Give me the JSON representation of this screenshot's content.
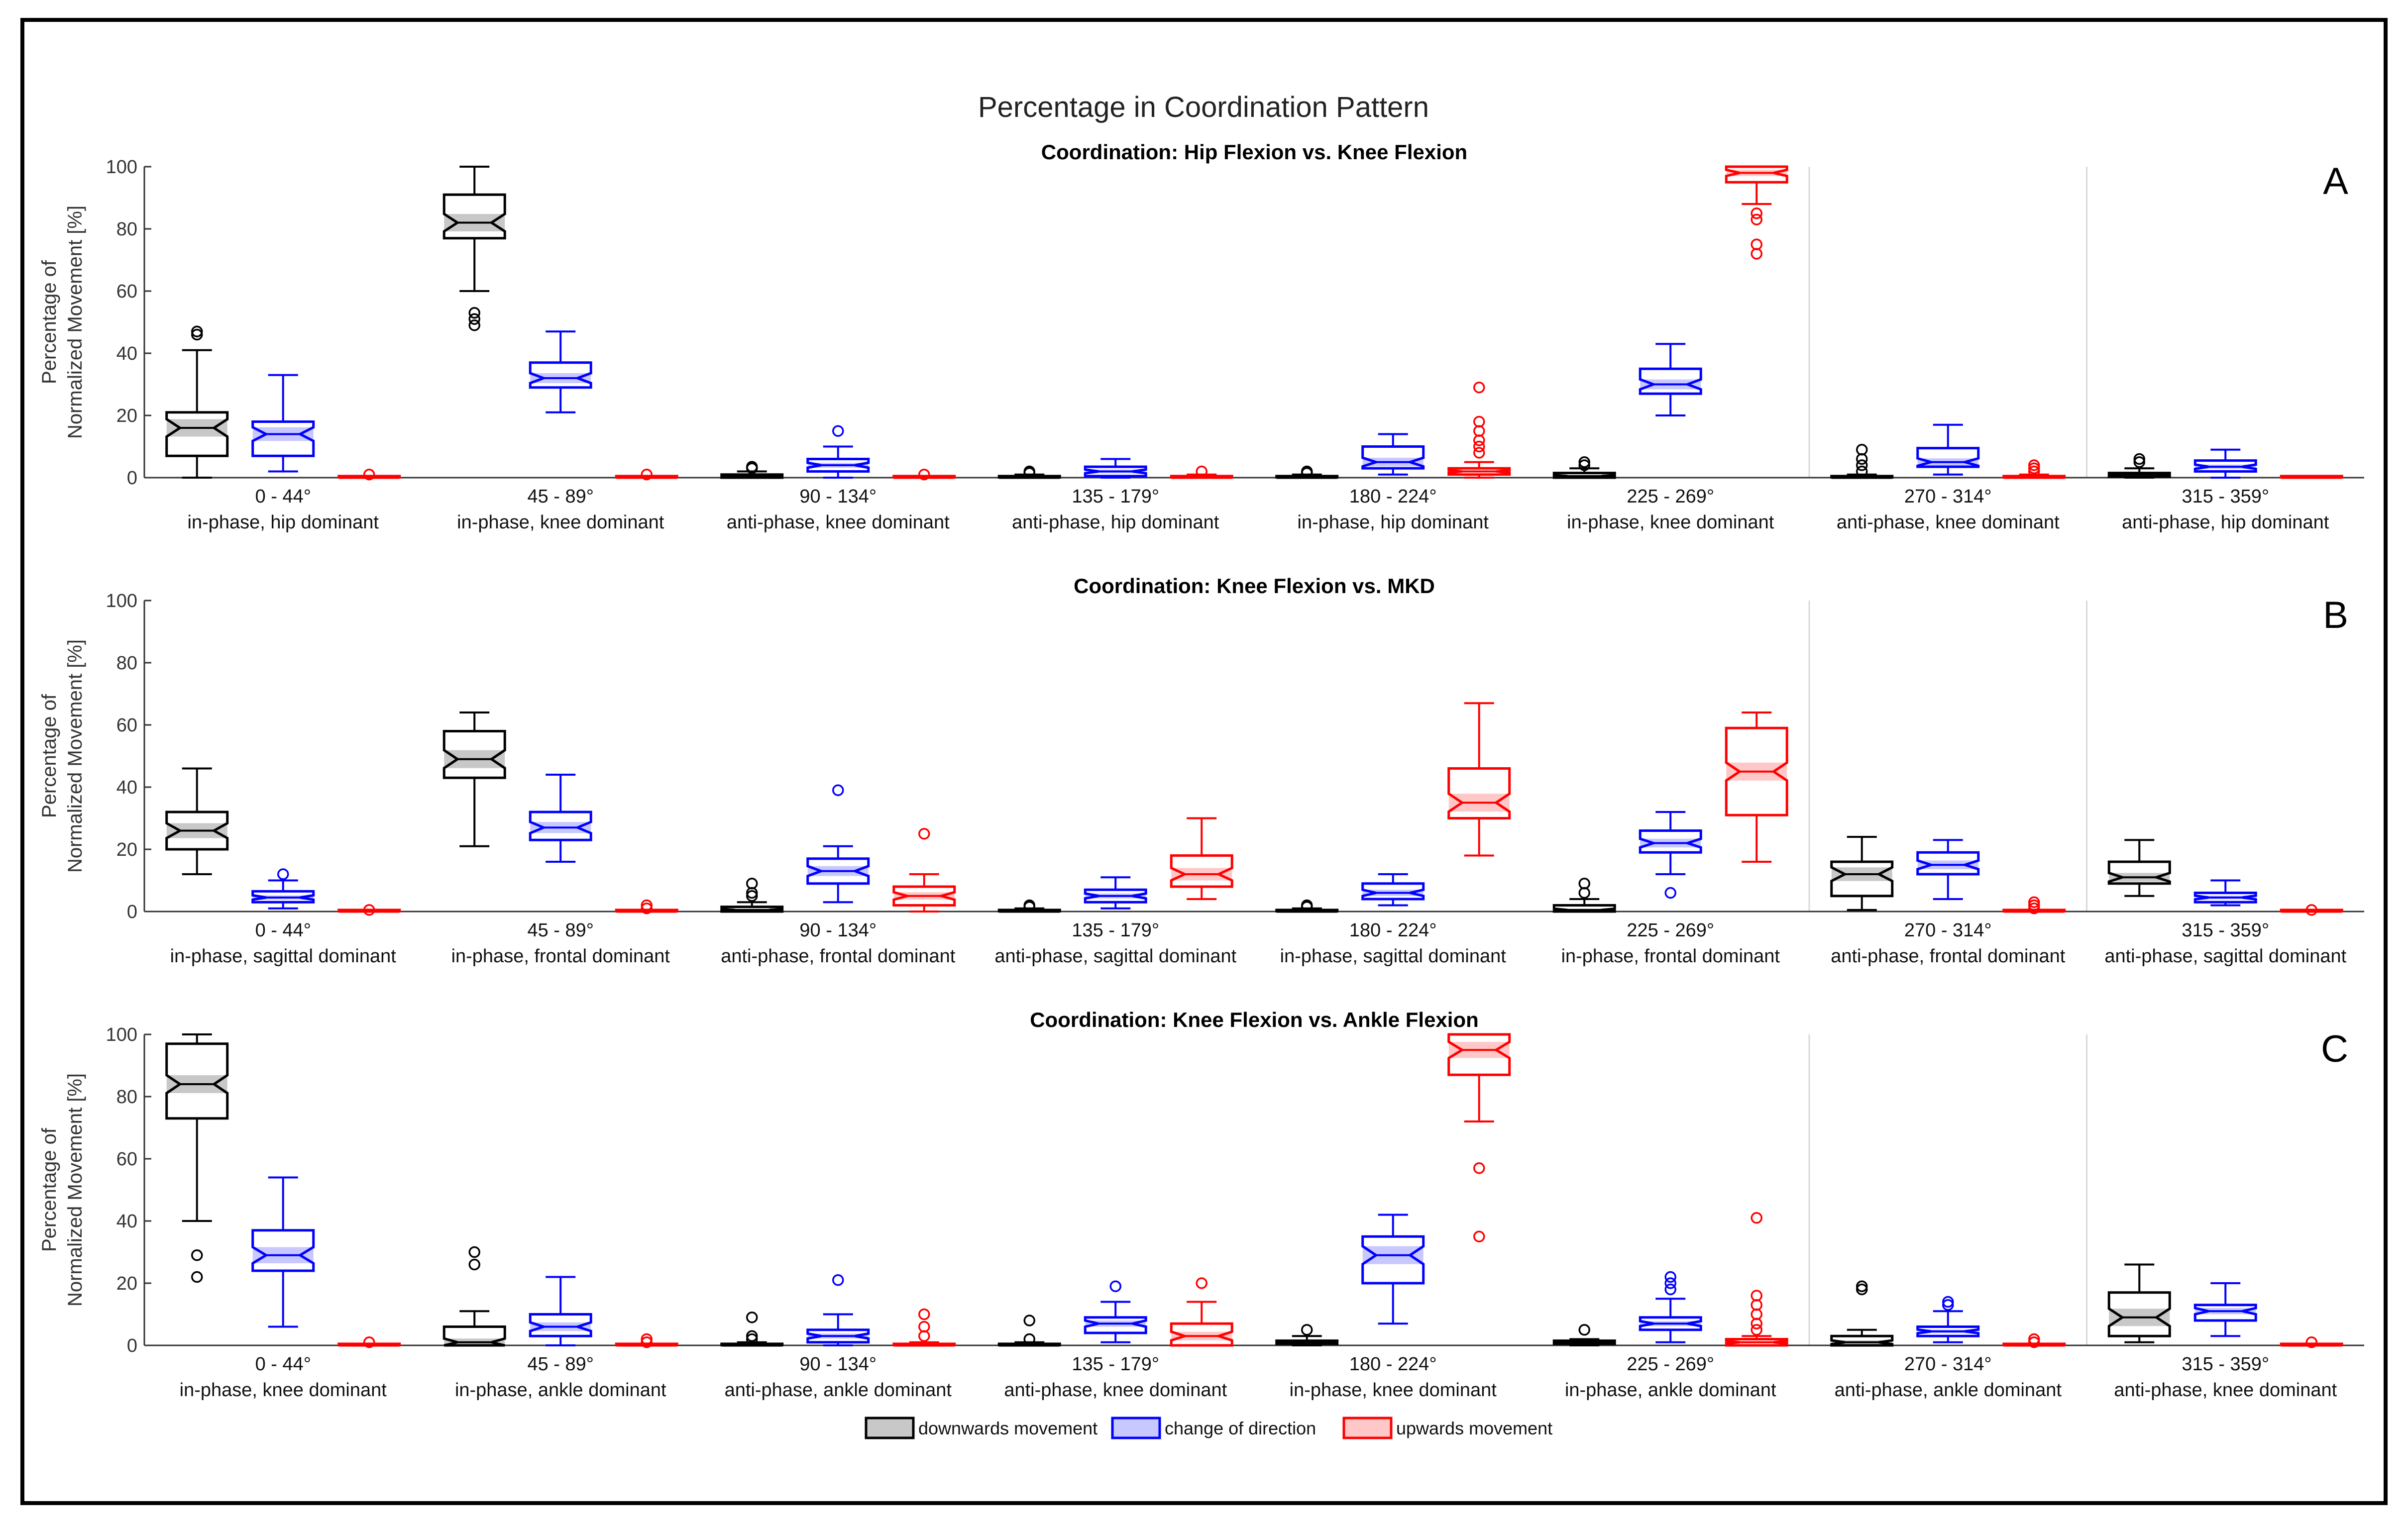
{
  "figure": {
    "title": "Percentage in Coordination Pattern",
    "ylabel_line1": "Percentage of",
    "ylabel_line2": "Normalized Movement [%]",
    "y_ticks": [
      "0",
      "20",
      "40",
      "60",
      "80",
      "100"
    ],
    "bins": [
      "0 - 44°",
      "45 - 89°",
      "90 - 134°",
      "135 - 179°",
      "180 - 224°",
      "225 - 269°",
      "270 - 314°",
      "315 - 359°"
    ],
    "legend": [
      {
        "label": "downwards movement",
        "color": "#000000",
        "fill": "#c8c8c8"
      },
      {
        "label": "change of direction",
        "color": "#0000ff",
        "fill": "#c8c8ff"
      },
      {
        "label": "upwards movement",
        "color": "#ff0000",
        "fill": "#ffc8c8"
      }
    ]
  },
  "chart_data": [
    {
      "type": "box",
      "panel_letter": "A",
      "title": "Coordination: Hip Flexion vs. Knee Flexion",
      "ylim": [
        0,
        100
      ],
      "categories": [
        "0 - 44°",
        "45 - 89°",
        "90 - 134°",
        "135 - 179°",
        "180 - 224°",
        "225 - 269°",
        "270 - 314°",
        "315 - 359°"
      ],
      "category_descriptions": [
        "in-phase, hip dominant",
        "in-phase, knee dominant",
        "anti-phase, knee dominant",
        "anti-phase, hip dominant",
        "in-phase, hip dominant",
        "in-phase, knee dominant",
        "anti-phase, knee dominant",
        "anti-phase, hip dominant"
      ],
      "series": [
        {
          "name": "downwards movement",
          "boxes": [
            {
              "min": 0,
              "q1": 7,
              "median": 16,
              "q3": 21,
              "max": 41,
              "outliers": [
                46,
                47
              ]
            },
            {
              "min": 60,
              "q1": 77,
              "median": 82,
              "q3": 91,
              "max": 100,
              "outliers": [
                49,
                51,
                53
              ]
            },
            {
              "min": 0,
              "q1": 0,
              "median": 0.5,
              "q3": 1,
              "max": 2,
              "outliers": [
                3,
                3.5
              ]
            },
            {
              "min": 0,
              "q1": 0,
              "median": 0,
              "q3": 0.5,
              "max": 1,
              "outliers": [
                1.5,
                2
              ]
            },
            {
              "min": 0,
              "q1": 0,
              "median": 0,
              "q3": 0.5,
              "max": 1,
              "outliers": [
                1.5,
                2
              ]
            },
            {
              "min": 0,
              "q1": 0,
              "median": 0.5,
              "q3": 1.5,
              "max": 3,
              "outliers": [
                4,
                5
              ]
            },
            {
              "min": 0,
              "q1": 0,
              "median": 0,
              "q3": 0.5,
              "max": 1,
              "outliers": [
                2,
                4,
                6,
                9
              ]
            },
            {
              "min": 0,
              "q1": 0.3,
              "median": 1,
              "q3": 1.5,
              "max": 3,
              "outliers": [
                5,
                6
              ]
            }
          ]
        },
        {
          "name": "change of direction",
          "boxes": [
            {
              "min": 2,
              "q1": 7,
              "median": 14,
              "q3": 18,
              "max": 33,
              "outliers": []
            },
            {
              "min": 21,
              "q1": 29,
              "median": 32,
              "q3": 37,
              "max": 47,
              "outliers": []
            },
            {
              "min": 0,
              "q1": 2,
              "median": 4,
              "q3": 6,
              "max": 10,
              "outliers": [
                15
              ]
            },
            {
              "min": 0,
              "q1": 0.5,
              "median": 2,
              "q3": 3.5,
              "max": 6,
              "outliers": []
            },
            {
              "min": 1,
              "q1": 3,
              "median": 5,
              "q3": 10,
              "max": 14,
              "outliers": []
            },
            {
              "min": 20,
              "q1": 27,
              "median": 30,
              "q3": 35,
              "max": 43,
              "outliers": []
            },
            {
              "min": 1,
              "q1": 3.5,
              "median": 5,
              "q3": 9.5,
              "max": 17,
              "outliers": []
            },
            {
              "min": 0,
              "q1": 2,
              "median": 3.5,
              "q3": 5.5,
              "max": 9,
              "outliers": []
            }
          ]
        },
        {
          "name": "upwards movement",
          "boxes": [
            {
              "min": 0,
              "q1": 0,
              "median": 0,
              "q3": 0.5,
              "max": 0.5,
              "outliers": [
                1
              ]
            },
            {
              "min": 0,
              "q1": 0,
              "median": 0,
              "q3": 0.5,
              "max": 0.5,
              "outliers": [
                1
              ]
            },
            {
              "min": 0,
              "q1": 0,
              "median": 0,
              "q3": 0.5,
              "max": 0.5,
              "outliers": [
                1
              ]
            },
            {
              "min": 0,
              "q1": 0,
              "median": 0,
              "q3": 0.5,
              "max": 1,
              "outliers": [
                2
              ]
            },
            {
              "min": 0,
              "q1": 1,
              "median": 2,
              "q3": 3,
              "max": 5,
              "outliers": [
                8,
                10,
                12,
                15,
                18,
                29
              ]
            },
            {
              "min": 88,
              "q1": 95,
              "median": 98,
              "q3": 100,
              "max": 100,
              "outliers": [
                72,
                75,
                83,
                85
              ]
            },
            {
              "min": 0,
              "q1": 0,
              "median": 0,
              "q3": 0.5,
              "max": 1,
              "outliers": [
                2,
                3,
                4
              ]
            },
            {
              "min": 0,
              "q1": 0,
              "median": 0,
              "q3": 0.5,
              "max": 0.5,
              "outliers": []
            }
          ]
        }
      ]
    },
    {
      "type": "box",
      "panel_letter": "B",
      "title": "Coordination: Knee Flexion vs. MKD",
      "ylim": [
        0,
        100
      ],
      "categories": [
        "0 - 44°",
        "45 - 89°",
        "90 - 134°",
        "135 - 179°",
        "180 - 224°",
        "225 - 269°",
        "270 - 314°",
        "315 - 359°"
      ],
      "category_descriptions": [
        "in-phase, sagittal dominant",
        "in-phase, frontal dominant",
        "anti-phase, frontal dominant",
        "anti-phase, sagittal dominant",
        "in-phase, sagittal dominant",
        "in-phase, frontal dominant",
        "anti-phase, frontal dominant",
        "anti-phase, sagittal dominant"
      ],
      "series": [
        {
          "name": "downwards movement",
          "boxes": [
            {
              "min": 12,
              "q1": 20,
              "median": 26,
              "q3": 32,
              "max": 46,
              "outliers": []
            },
            {
              "min": 21,
              "q1": 43,
              "median": 49,
              "q3": 58,
              "max": 64,
              "outliers": []
            },
            {
              "min": 0,
              "q1": 0,
              "median": 0.5,
              "q3": 1.5,
              "max": 3,
              "outliers": [
                5,
                6,
                9
              ]
            },
            {
              "min": 0,
              "q1": 0,
              "median": 0,
              "q3": 0.5,
              "max": 1,
              "outliers": [
                1.5,
                2
              ]
            },
            {
              "min": 0,
              "q1": 0,
              "median": 0,
              "q3": 0.5,
              "max": 1,
              "outliers": [
                1.5,
                2
              ]
            },
            {
              "min": 0,
              "q1": 0,
              "median": 0.5,
              "q3": 2,
              "max": 4,
              "outliers": [
                6,
                9
              ]
            },
            {
              "min": 0.5,
              "q1": 5,
              "median": 12,
              "q3": 16,
              "max": 24,
              "outliers": []
            },
            {
              "min": 5,
              "q1": 9,
              "median": 11,
              "q3": 16,
              "max": 23,
              "outliers": []
            }
          ]
        },
        {
          "name": "change of direction",
          "boxes": [
            {
              "min": 1,
              "q1": 3,
              "median": 4.5,
              "q3": 6.5,
              "max": 10,
              "outliers": [
                12
              ]
            },
            {
              "min": 16,
              "q1": 23,
              "median": 27,
              "q3": 32,
              "max": 44,
              "outliers": []
            },
            {
              "min": 3,
              "q1": 9,
              "median": 13,
              "q3": 17,
              "max": 21,
              "outliers": [
                39
              ]
            },
            {
              "min": 1,
              "q1": 3,
              "median": 5,
              "q3": 7,
              "max": 11,
              "outliers": []
            },
            {
              "min": 2,
              "q1": 4,
              "median": 6,
              "q3": 9,
              "max": 12,
              "outliers": []
            },
            {
              "min": 12,
              "q1": 19,
              "median": 22,
              "q3": 26,
              "max": 32,
              "outliers": [
                6
              ]
            },
            {
              "min": 4,
              "q1": 12,
              "median": 15,
              "q3": 19,
              "max": 23,
              "outliers": []
            },
            {
              "min": 2,
              "q1": 3,
              "median": 4.5,
              "q3": 6,
              "max": 10,
              "outliers": []
            }
          ]
        },
        {
          "name": "upwards movement",
          "boxes": [
            {
              "min": 0,
              "q1": 0,
              "median": 0,
              "q3": 0.5,
              "max": 0.5,
              "outliers": [
                0.5
              ]
            },
            {
              "min": 0,
              "q1": 0,
              "median": 0,
              "q3": 0.5,
              "max": 0.5,
              "outliers": [
                1,
                2
              ]
            },
            {
              "min": 0,
              "q1": 2,
              "median": 5,
              "q3": 8,
              "max": 12,
              "outliers": [
                25
              ]
            },
            {
              "min": 4,
              "q1": 8,
              "median": 12,
              "q3": 18,
              "max": 30,
              "outliers": []
            },
            {
              "min": 18,
              "q1": 30,
              "median": 35,
              "q3": 46,
              "max": 67,
              "outliers": []
            },
            {
              "min": 16,
              "q1": 31,
              "median": 45,
              "q3": 59,
              "max": 64,
              "outliers": []
            },
            {
              "min": 0,
              "q1": 0,
              "median": 0,
              "q3": 0.5,
              "max": 0.5,
              "outliers": [
                1,
                2,
                3
              ]
            },
            {
              "min": 0,
              "q1": 0,
              "median": 0,
              "q3": 0.5,
              "max": 0.5,
              "outliers": [
                0.5
              ]
            }
          ]
        }
      ]
    },
    {
      "type": "box",
      "panel_letter": "C",
      "title": "Coordination: Knee Flexion vs. Ankle Flexion",
      "ylim": [
        0,
        100
      ],
      "categories": [
        "0 - 44°",
        "45 - 89°",
        "90 - 134°",
        "135 - 179°",
        "180 - 224°",
        "225 - 269°",
        "270 - 314°",
        "315 - 359°"
      ],
      "category_descriptions": [
        "in-phase, knee dominant",
        "in-phase, ankle dominant",
        "anti-phase, ankle dominant",
        "anti-phase, knee dominant",
        "in-phase, knee dominant",
        "in-phase, ankle dominant",
        "anti-phase, ankle dominant",
        "anti-phase, knee dominant"
      ],
      "series": [
        {
          "name": "downwards movement",
          "boxes": [
            {
              "min": 40,
              "q1": 73,
              "median": 84,
              "q3": 97,
              "max": 100,
              "outliers": [
                22,
                29
              ]
            },
            {
              "min": 0,
              "q1": 0,
              "median": 1,
              "q3": 6,
              "max": 11,
              "outliers": [
                26,
                30
              ]
            },
            {
              "min": 0,
              "q1": 0,
              "median": 0,
              "q3": 0.5,
              "max": 1,
              "outliers": [
                2,
                3,
                9
              ]
            },
            {
              "min": 0,
              "q1": 0,
              "median": 0,
              "q3": 0.5,
              "max": 1,
              "outliers": [
                2,
                8
              ]
            },
            {
              "min": 0,
              "q1": 0.5,
              "median": 1,
              "q3": 1.5,
              "max": 3,
              "outliers": [
                5
              ]
            },
            {
              "min": 0,
              "q1": 0.5,
              "median": 1,
              "q3": 1.5,
              "max": 2,
              "outliers": [
                5
              ]
            },
            {
              "min": 0,
              "q1": 0,
              "median": 1,
              "q3": 3,
              "max": 5,
              "outliers": [
                18,
                19
              ]
            },
            {
              "min": 1,
              "q1": 3,
              "median": 9,
              "q3": 17,
              "max": 26,
              "outliers": []
            }
          ]
        },
        {
          "name": "change of direction",
          "boxes": [
            {
              "min": 6,
              "q1": 24,
              "median": 29,
              "q3": 37,
              "max": 54,
              "outliers": []
            },
            {
              "min": 0,
              "q1": 3,
              "median": 6,
              "q3": 10,
              "max": 22,
              "outliers": []
            },
            {
              "min": 0,
              "q1": 1,
              "median": 3,
              "q3": 5,
              "max": 10,
              "outliers": [
                21
              ]
            },
            {
              "min": 1,
              "q1": 4,
              "median": 7,
              "q3": 9,
              "max": 14,
              "outliers": [
                19
              ]
            },
            {
              "min": 7,
              "q1": 20,
              "median": 29,
              "q3": 35,
              "max": 42,
              "outliers": []
            },
            {
              "min": 1,
              "q1": 5,
              "median": 7,
              "q3": 9,
              "max": 15,
              "outliers": [
                18,
                20,
                22
              ]
            },
            {
              "min": 1,
              "q1": 3,
              "median": 4.5,
              "q3": 6,
              "max": 11,
              "outliers": [
                13,
                14
              ]
            },
            {
              "min": 3,
              "q1": 8,
              "median": 11,
              "q3": 13,
              "max": 20,
              "outliers": []
            }
          ]
        },
        {
          "name": "upwards movement",
          "boxes": [
            {
              "min": 0,
              "q1": 0,
              "median": 0,
              "q3": 0.5,
              "max": 0.5,
              "outliers": [
                1
              ]
            },
            {
              "min": 0,
              "q1": 0,
              "median": 0,
              "q3": 0.5,
              "max": 0.5,
              "outliers": [
                1,
                2
              ]
            },
            {
              "min": 0,
              "q1": 0,
              "median": 0,
              "q3": 0.5,
              "max": 1,
              "outliers": [
                3,
                6,
                10
              ]
            },
            {
              "min": 0,
              "q1": 0,
              "median": 3,
              "q3": 7,
              "max": 14,
              "outliers": [
                20
              ]
            },
            {
              "min": 72,
              "q1": 87,
              "median": 95,
              "q3": 100,
              "max": 100,
              "outliers": [
                35,
                57
              ]
            },
            {
              "min": 0,
              "q1": 0,
              "median": 1,
              "q3": 2,
              "max": 3,
              "outliers": [
                5,
                7,
                10,
                13,
                16,
                41
              ]
            },
            {
              "min": 0,
              "q1": 0,
              "median": 0,
              "q3": 0.5,
              "max": 0.5,
              "outliers": [
                1,
                2
              ]
            },
            {
              "min": 0,
              "q1": 0,
              "median": 0,
              "q3": 0.5,
              "max": 0.5,
              "outliers": [
                1
              ]
            }
          ]
        }
      ]
    }
  ]
}
